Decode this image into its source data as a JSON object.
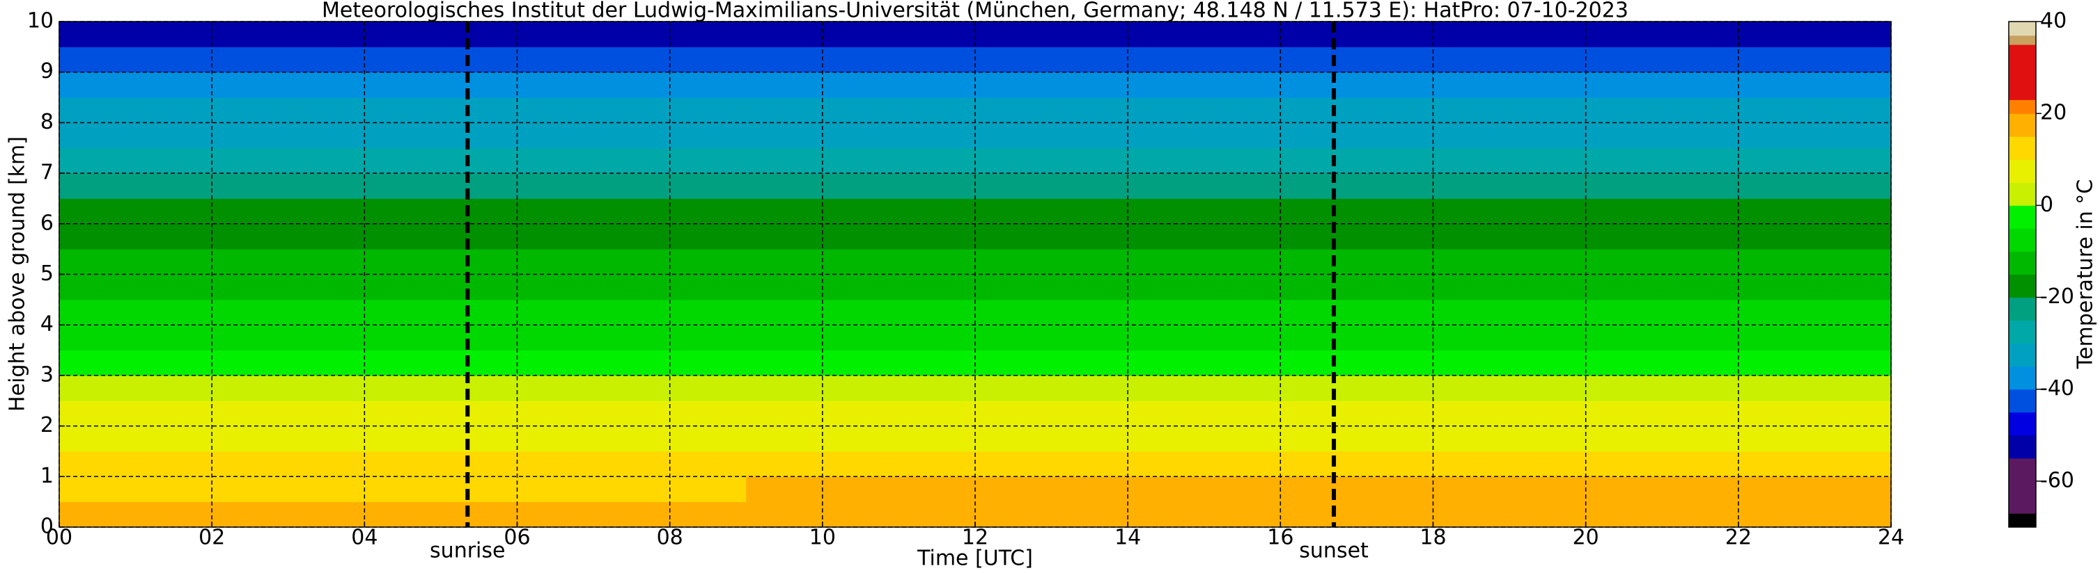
{
  "chart_data": {
    "type": "heatmap",
    "title": "Meteorologisches Institut der Ludwig-Maximilians-Universität (München, Germany; 48.148 N / 11.573 E):    HatPro: 07-10-2023",
    "x_label": "Time [UTC]",
    "y_label": "Height above ground [km]",
    "colorbar_label": "Temperature in °C",
    "x": [
      0,
      3,
      6,
      9,
      12,
      15,
      18,
      21,
      24
    ],
    "y": [
      0,
      0.5,
      1,
      1.5,
      2,
      2.5,
      3,
      3.5,
      4,
      4.5,
      5,
      5.5,
      6,
      6.5,
      7,
      7.5,
      8,
      8.5,
      9,
      9.5,
      10
    ],
    "z": [
      [
        16,
        16,
        16,
        17,
        17,
        17,
        17,
        17
      ],
      [
        14,
        14,
        14,
        15,
        15,
        15,
        15,
        15
      ],
      [
        12,
        12,
        12,
        13,
        13,
        13,
        13,
        13
      ],
      [
        9,
        9,
        9,
        9,
        9,
        9,
        9,
        9
      ],
      [
        7,
        7,
        7,
        7,
        7,
        7,
        7,
        7
      ],
      [
        3,
        3,
        3,
        3,
        3,
        3,
        3,
        3
      ],
      [
        -2,
        -2,
        -1,
        -1,
        -1,
        -1,
        -1,
        -1
      ],
      [
        -6,
        -6,
        -6,
        -6,
        -6,
        -6,
        -6,
        -6
      ],
      [
        -9,
        -9,
        -9,
        -9,
        -8,
        -8,
        -8,
        -8
      ],
      [
        -12,
        -12,
        -12,
        -12,
        -12,
        -12,
        -12,
        -12
      ],
      [
        -14,
        -14,
        -14,
        -14,
        -14,
        -14,
        -14,
        -14
      ],
      [
        -17,
        -17,
        -17,
        -17,
        -17,
        -17,
        -17,
        -17
      ],
      [
        -19,
        -19,
        -19,
        -19,
        -19,
        -19,
        -19,
        -19
      ],
      [
        -21,
        -21,
        -22,
        -22,
        -22,
        -22,
        -22,
        -22
      ],
      [
        -27,
        -27,
        -27,
        -27,
        -27,
        -27,
        -27,
        -27
      ],
      [
        -32,
        -32,
        -32,
        -32,
        -32,
        -32,
        -32,
        -32
      ],
      [
        -33,
        -33,
        -33,
        -33,
        -33,
        -33,
        -33,
        -33
      ],
      [
        -38,
        -38,
        -38,
        -38,
        -38,
        -38,
        -38,
        -38
      ],
      [
        -43,
        -43,
        -43,
        -43,
        -43,
        -43,
        -43,
        -43
      ],
      [
        -52,
        -52,
        -52,
        -52,
        -52,
        -52,
        -52,
        -52
      ]
    ],
    "levels": [
      -70,
      -67,
      -55,
      -50,
      -45,
      -40,
      -35,
      -30,
      -25,
      -20,
      -15,
      -10,
      -5,
      0,
      5,
      10,
      15,
      20,
      23,
      35,
      37,
      40
    ],
    "colors": [
      "#000000",
      "#5b1a60",
      "#0000a8",
      "#0000e0",
      "#0050e0",
      "#0090e0",
      "#00a0c0",
      "#00a8a8",
      "#00a080",
      "#009000",
      "#00b800",
      "#00d800",
      "#00f000",
      "#c8f000",
      "#e8f000",
      "#ffd800",
      "#ffb000",
      "#ff8000",
      "#e01010",
      "#c8a060",
      "#e0d8b0"
    ],
    "xlim": [
      0,
      24
    ],
    "ylim": [
      0,
      10
    ],
    "clim": [
      -70,
      40
    ],
    "xticks": [
      {
        "value": 0,
        "label": "00"
      },
      {
        "value": 2,
        "label": "02"
      },
      {
        "value": 4,
        "label": "04"
      },
      {
        "value": 6,
        "label": "06"
      },
      {
        "value": 8,
        "label": "08"
      },
      10,
      12,
      14,
      16,
      18,
      20,
      22,
      24
    ],
    "yticks": [
      0,
      1,
      2,
      3,
      4,
      5,
      6,
      7,
      8,
      9,
      10
    ],
    "cticks": [
      -60,
      -40,
      -20,
      0,
      20,
      40
    ],
    "grid": true,
    "vlines": [
      {
        "x": 5.35,
        "label": "sunrise"
      },
      {
        "x": 16.7,
        "label": "sunset"
      }
    ]
  }
}
